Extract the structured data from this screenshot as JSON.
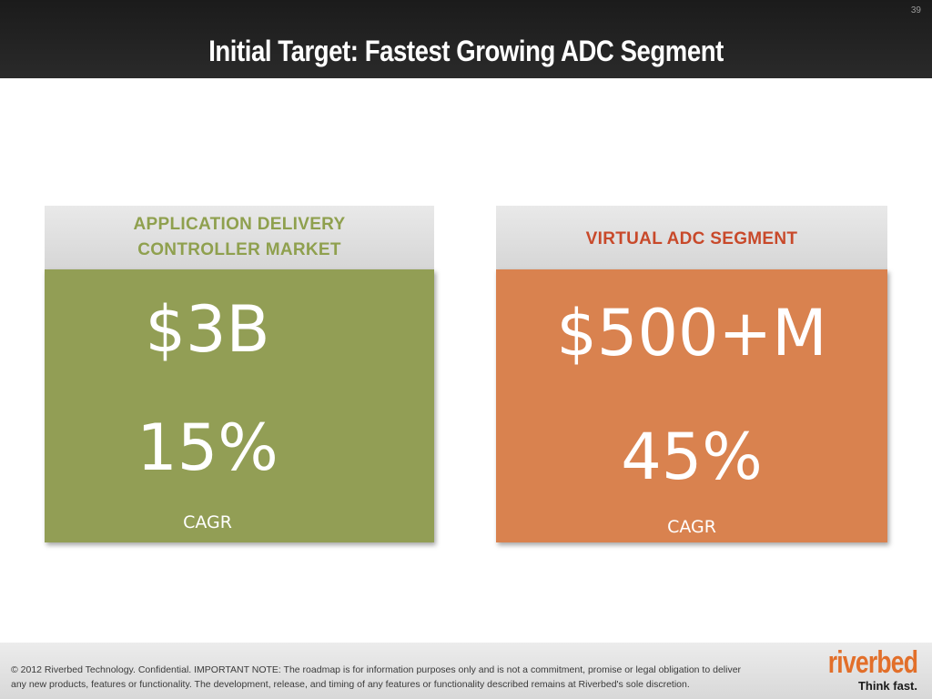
{
  "slide": {
    "number": "39",
    "title": "Initial Target: Fastest Growing ADC Segment"
  },
  "cards": {
    "left": {
      "heading_line1": "APPLICATION DELIVERY",
      "heading_line2": "CONTROLLER MARKET",
      "value": "$3B",
      "growth": "15%",
      "growth_label": "CAGR",
      "color": "#929e55"
    },
    "right": {
      "heading": "VIRTUAL ADC SEGMENT",
      "value": "$500+M",
      "growth": "45%",
      "growth_label": "CAGR",
      "color": "#d9824f"
    }
  },
  "footer": {
    "disclaimer_line1": "© 2012 Riverbed Technology. Confidential. IMPORTANT NOTE: The roadmap is for information purposes only and is not a commitment, promise or legal obligation to deliver",
    "disclaimer_line2": "any new products, features or functionality.  The development, release, and timing of any features or functionality described remains at Riverbed's sole discretion.",
    "logo_text": "riverbed",
    "tagline": "Think fast."
  },
  "colors": {
    "header_bg": "#1b1b1b",
    "accent_orange": "#e26f2a",
    "left_heading": "#8fa04e",
    "right_heading": "#c8492a"
  }
}
